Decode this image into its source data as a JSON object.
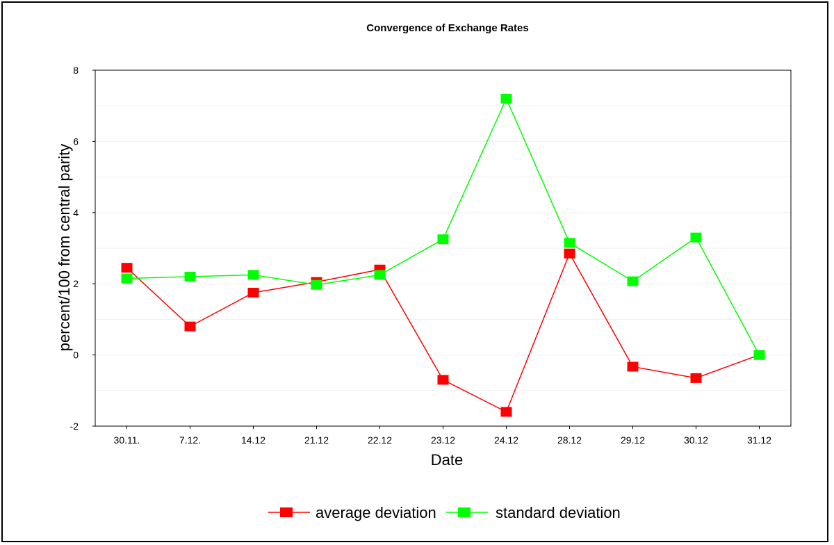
{
  "chart_data": {
    "type": "line",
    "title": "Convergence of Exchange Rates",
    "xlabel": "Date",
    "ylabel": "percent/100 from central parity",
    "categories": [
      "30.11.",
      "7.12.",
      "14.12",
      "21.12",
      "22.12",
      "23.12",
      "24.12",
      "28.12",
      "29.12",
      "30.12",
      "31.12"
    ],
    "ylim": [
      -2,
      8
    ],
    "yticks": [
      -2,
      0,
      2,
      4,
      6,
      8
    ],
    "grid": true,
    "legend_position": "bottom",
    "series": [
      {
        "name": "average deviation",
        "color": "#ff0000",
        "values": [
          2.45,
          0.8,
          1.75,
          2.05,
          2.4,
          -0.7,
          -1.6,
          2.85,
          -0.33,
          -0.65,
          0.0
        ]
      },
      {
        "name": "standard deviation",
        "color": "#00ff00",
        "values": [
          2.15,
          2.2,
          2.25,
          1.97,
          2.25,
          3.25,
          7.2,
          3.15,
          2.07,
          3.3,
          0.0
        ]
      }
    ]
  }
}
